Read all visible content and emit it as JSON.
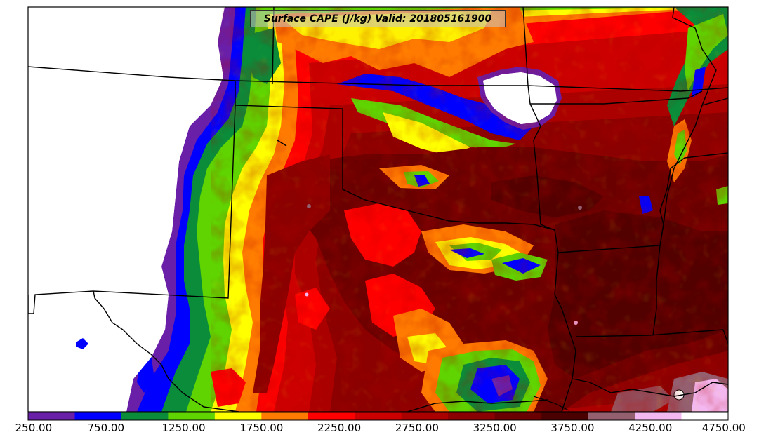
{
  "map": {
    "title": "Surface CAPE (J/kg) Valid: 201805161900",
    "field": "surface-cape",
    "colorbar": {
      "min": 250,
      "max": 4750,
      "step": 250,
      "colors": [
        "#6a1fa8",
        "#0000ff",
        "#0a8c3a",
        "#5fd400",
        "#ffff00",
        "#ff7a00",
        "#ff0000",
        "#cc0000",
        "#aa0000",
        "#8b0000",
        "#6b0000",
        "#4a0000",
        "#946070",
        "#f4b8f0",
        "#ffffff"
      ],
      "tick_labels": [
        "250.00",
        "750.00",
        "1250.00",
        "1750.00",
        "2250.00",
        "2750.00",
        "3250.00",
        "3750.00",
        "4250.00",
        "4750.00"
      ]
    }
  }
}
